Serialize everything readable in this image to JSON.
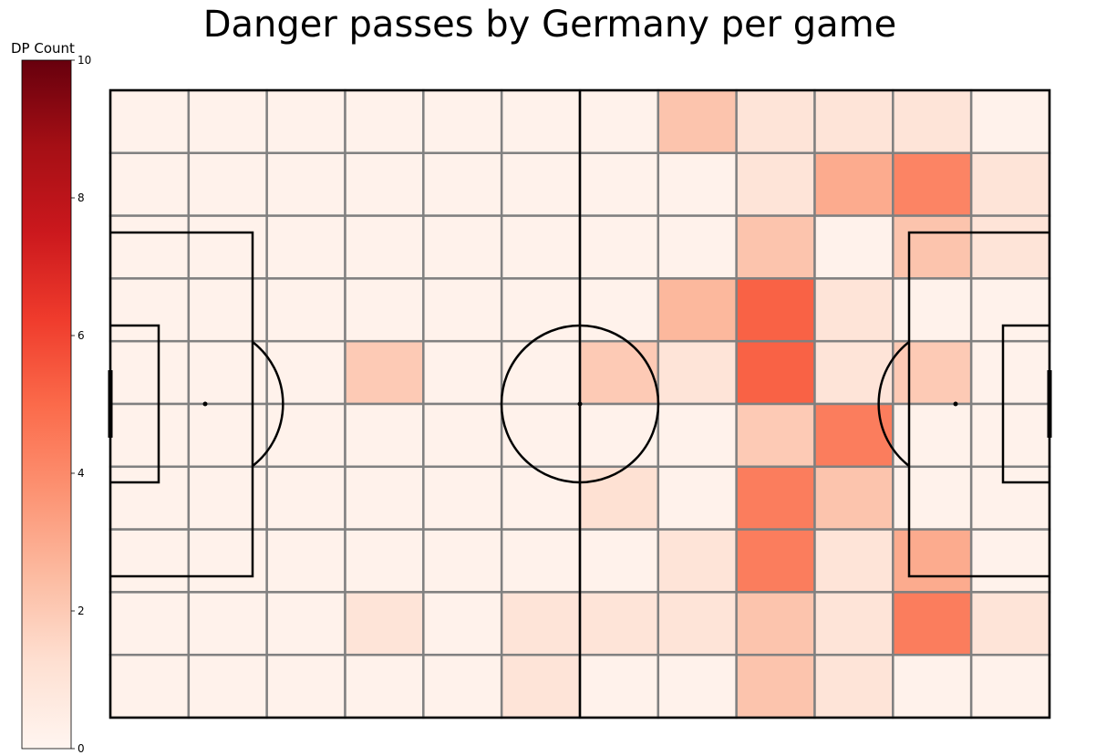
{
  "chart_data": {
    "type": "heatmap",
    "title": "Danger passes by Germany per game",
    "grid_shape": [
      10,
      12
    ],
    "values": [
      [
        0.2,
        0.2,
        0.2,
        0.2,
        0.2,
        0.2,
        0.2,
        2.2,
        1.0,
        1.0,
        1.0,
        0.2
      ],
      [
        0.2,
        0.2,
        0.2,
        0.2,
        0.2,
        0.2,
        0.2,
        0.2,
        1.0,
        3.0,
        4.2,
        1.0
      ],
      [
        0.2,
        0.2,
        0.2,
        0.2,
        0.2,
        0.2,
        0.2,
        0.2,
        2.2,
        0.2,
        2.2,
        1.0
      ],
      [
        0.2,
        0.2,
        0.2,
        0.2,
        0.2,
        0.2,
        0.2,
        2.6,
        5.2,
        1.0,
        0.2,
        0.2
      ],
      [
        0.2,
        0.2,
        0.2,
        2.0,
        0.2,
        0.2,
        2.0,
        1.0,
        5.2,
        1.0,
        2.0,
        0.2
      ],
      [
        0.2,
        0.2,
        0.2,
        0.2,
        0.2,
        0.2,
        0.2,
        0.2,
        2.0,
        4.4,
        0.2,
        0.2
      ],
      [
        0.2,
        0.2,
        0.2,
        0.2,
        0.2,
        0.2,
        1.2,
        0.2,
        4.4,
        2.2,
        0.2,
        0.2
      ],
      [
        0.2,
        0.2,
        0.2,
        0.2,
        0.2,
        0.2,
        0.2,
        1.0,
        4.4,
        1.0,
        3.0,
        0.2
      ],
      [
        0.2,
        0.2,
        0.2,
        1.0,
        0.2,
        1.0,
        1.0,
        1.0,
        2.2,
        1.0,
        4.4,
        1.0
      ],
      [
        0.2,
        0.2,
        0.2,
        0.2,
        0.2,
        1.0,
        0.2,
        0.2,
        2.2,
        1.0,
        0.2,
        0.2
      ]
    ],
    "colorbar": {
      "label": "DP Count",
      "range": [
        0,
        10
      ],
      "ticks": [
        "0",
        "2",
        "4",
        "6",
        "8",
        "10"
      ],
      "colormap": "Reds",
      "stops": [
        "#fff5f0",
        "#fee0d2",
        "#fcbba1",
        "#fc9272",
        "#fb6a4a",
        "#ef3b2c",
        "#cb181d",
        "#a50f15",
        "#67000d"
      ]
    },
    "grid_color": "#808080",
    "line_color": "#000000"
  }
}
